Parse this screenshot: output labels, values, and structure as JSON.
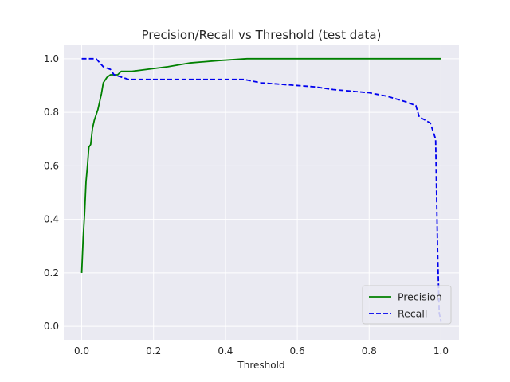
{
  "chart_data": {
    "type": "line",
    "title": "Precision/Recall vs Threshold (test data)",
    "xlabel": "Threshold",
    "ylabel": "",
    "xlim": [
      -0.05,
      1.05
    ],
    "ylim": [
      -0.05,
      1.05
    ],
    "xticks": [
      0.0,
      0.2,
      0.4,
      0.6,
      0.8,
      1.0
    ],
    "xtick_labels": [
      "0.0",
      "0.2",
      "0.4",
      "0.6",
      "0.8",
      "1.0"
    ],
    "yticks": [
      0.0,
      0.2,
      0.4,
      0.6,
      0.8,
      1.0
    ],
    "ytick_labels": [
      "0.0",
      "0.2",
      "0.4",
      "0.6",
      "0.8",
      "1.0"
    ],
    "grid": true,
    "legend_position": "lower-right",
    "series": [
      {
        "name": "Precision",
        "color": "#008000",
        "style": "solid",
        "x": [
          0.0,
          0.004,
          0.008,
          0.012,
          0.016,
          0.02,
          0.025,
          0.03,
          0.035,
          0.04,
          0.045,
          0.05,
          0.055,
          0.06,
          0.07,
          0.08,
          0.09,
          0.1,
          0.11,
          0.14,
          0.24,
          0.3,
          0.38,
          0.46,
          0.6,
          0.8,
          1.0
        ],
        "y": [
          0.2,
          0.33,
          0.42,
          0.54,
          0.6,
          0.67,
          0.68,
          0.74,
          0.77,
          0.79,
          0.81,
          0.84,
          0.87,
          0.91,
          0.93,
          0.94,
          0.94,
          0.94,
          0.953,
          0.953,
          0.97,
          0.984,
          0.993,
          1.0,
          1.0,
          1.0,
          1.0
        ]
      },
      {
        "name": "Recall",
        "color": "#0000ee",
        "style": "dashed",
        "x": [
          0.0,
          0.04,
          0.05,
          0.06,
          0.08,
          0.09,
          0.13,
          0.2,
          0.45,
          0.5,
          0.55,
          0.6,
          0.65,
          0.7,
          0.8,
          0.85,
          0.9,
          0.93,
          0.94,
          0.95,
          0.97,
          0.98,
          0.985,
          0.99,
          0.995,
          1.0
        ],
        "y": [
          1.0,
          1.0,
          0.985,
          0.97,
          0.96,
          0.94,
          0.923,
          0.923,
          0.923,
          0.91,
          0.905,
          0.9,
          0.895,
          0.885,
          0.873,
          0.86,
          0.84,
          0.825,
          0.78,
          0.775,
          0.76,
          0.72,
          0.7,
          0.31,
          0.05,
          0.02
        ]
      }
    ]
  }
}
